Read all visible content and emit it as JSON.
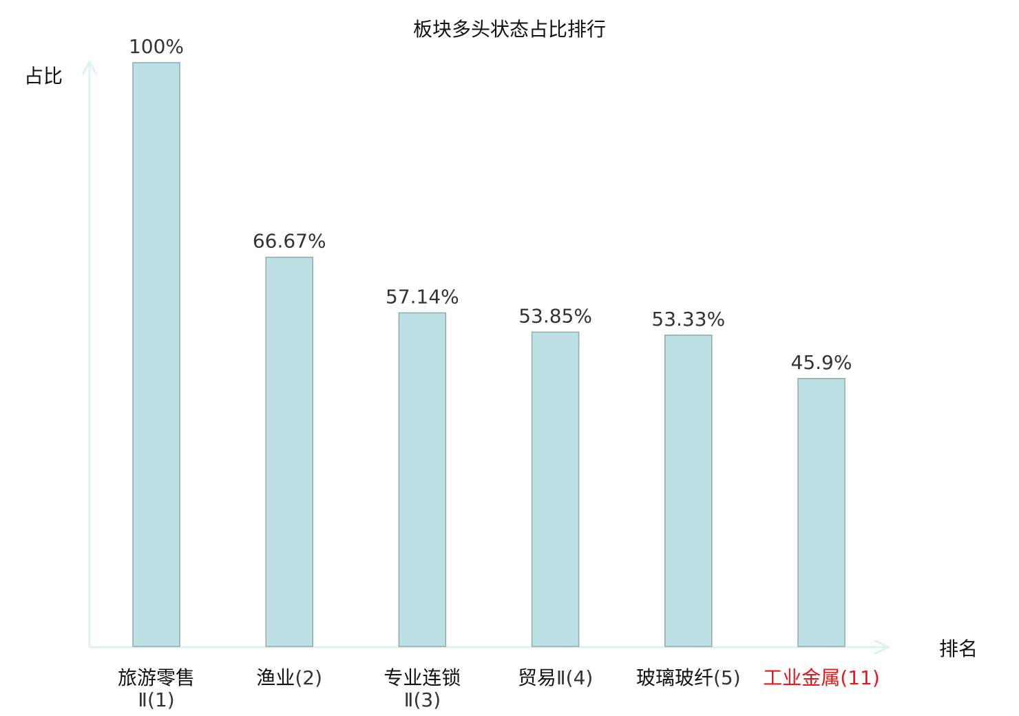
{
  "chart_data": {
    "type": "bar",
    "title": "板块多头状态占比排行",
    "xlabel": "排名",
    "ylabel": "占比",
    "ylim": [
      0,
      100
    ],
    "grid": false,
    "categories": [
      {
        "name": "旅游零售",
        "rank": "Ⅱ(1)",
        "highlight": false
      },
      {
        "name": "渔业",
        "rank": "(2)",
        "highlight": false
      },
      {
        "name": "专业连锁",
        "rank": "Ⅱ(3)",
        "highlight": false
      },
      {
        "name": "贸易",
        "rank": "Ⅱ(4)",
        "highlight": false
      },
      {
        "name": "玻璃玻纤",
        "rank": "(5)",
        "highlight": false
      },
      {
        "name": "工业金属",
        "rank": "(11)",
        "highlight": true
      }
    ],
    "values": [
      100,
      66.67,
      57.14,
      53.85,
      53.33,
      45.9
    ],
    "value_labels": [
      "100%",
      "66.67%",
      "57.14%",
      "53.85%",
      "53.33%",
      "45.9%"
    ],
    "colors": {
      "bar_fill": "#bce0e3",
      "bar_stroke": "#8faaab",
      "axis": "#dff2f0",
      "highlight": "#e8151b",
      "text": "#222222"
    }
  }
}
